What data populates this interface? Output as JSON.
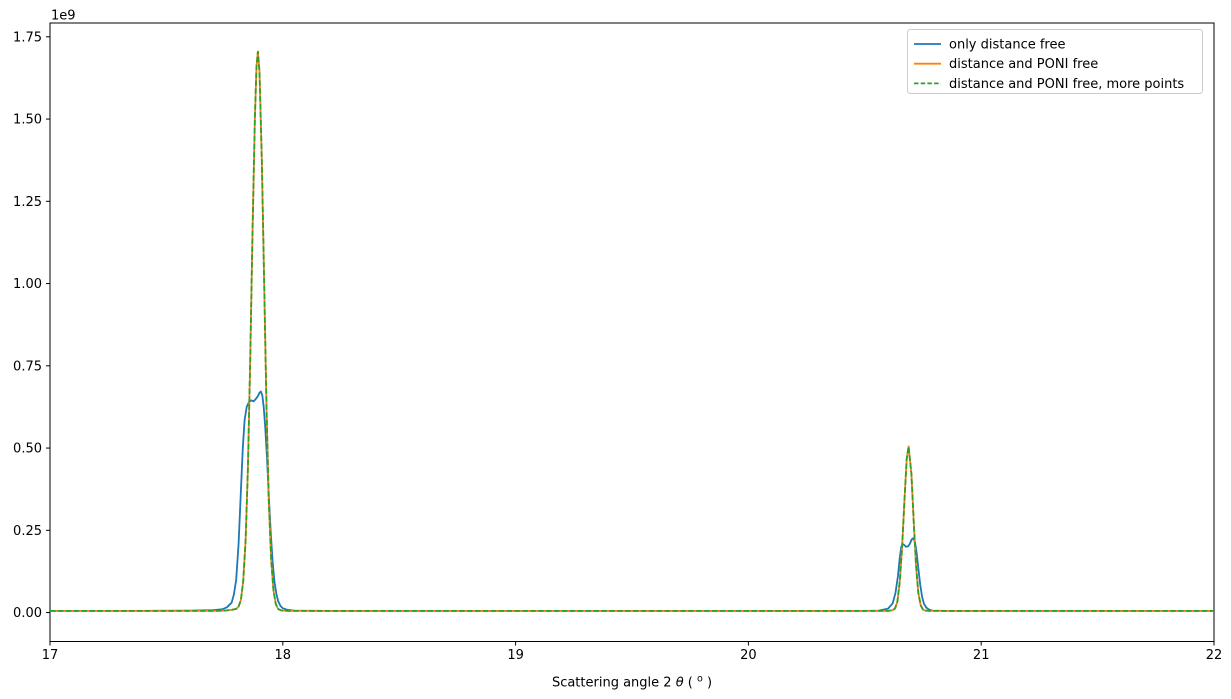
{
  "figure": {
    "background": "#ffffff"
  },
  "chart_data": {
    "type": "line",
    "title": "",
    "offset_text": "1e9",
    "xlabel_parts": [
      "Scattering angle 2",
      "θ",
      " (",
      "o",
      ")"
    ],
    "ylabel": "",
    "xlim": [
      17,
      22
    ],
    "ylim_1e9": [
      -0.088,
      1.792
    ],
    "grid": false,
    "x_ticks": {
      "values": [
        17,
        18,
        19,
        20,
        21,
        22
      ],
      "labels": [
        "17",
        "18",
        "19",
        "20",
        "21",
        "22"
      ]
    },
    "y_ticks": {
      "values": [
        0,
        0.25,
        0.5,
        0.75,
        1.0,
        1.25,
        1.5,
        1.75
      ],
      "labels": [
        "0.00",
        "0.25",
        "0.50",
        "0.75",
        "1.00",
        "1.25",
        "1.50",
        "1.75"
      ]
    },
    "y_unit": "1e9",
    "legend": {
      "position": "upper right",
      "border_color": "#cccccc",
      "background": "#ffffff"
    },
    "series": [
      {
        "name": "only distance free",
        "color": "#1f77b4",
        "style": "solid",
        "peaks_note": "broad split-top peaks at 2theta 17.87 (0.67e9) and 20.68 (0.23e9)",
        "points": [
          [
            17.0,
            0.005
          ],
          [
            17.3,
            0.005
          ],
          [
            17.6,
            0.006
          ],
          [
            17.7,
            0.007
          ],
          [
            17.74,
            0.01
          ],
          [
            17.76,
            0.016
          ],
          [
            17.78,
            0.03
          ],
          [
            17.79,
            0.055
          ],
          [
            17.8,
            0.1
          ],
          [
            17.81,
            0.21
          ],
          [
            17.82,
            0.37
          ],
          [
            17.828,
            0.5
          ],
          [
            17.836,
            0.585
          ],
          [
            17.845,
            0.625
          ],
          [
            17.855,
            0.64
          ],
          [
            17.865,
            0.645
          ],
          [
            17.875,
            0.642
          ],
          [
            17.885,
            0.65
          ],
          [
            17.893,
            0.658
          ],
          [
            17.9,
            0.668
          ],
          [
            17.906,
            0.672
          ],
          [
            17.912,
            0.66
          ],
          [
            17.918,
            0.625
          ],
          [
            17.925,
            0.56
          ],
          [
            17.932,
            0.47
          ],
          [
            17.94,
            0.355
          ],
          [
            17.948,
            0.245
          ],
          [
            17.956,
            0.155
          ],
          [
            17.964,
            0.095
          ],
          [
            17.972,
            0.058
          ],
          [
            17.98,
            0.035
          ],
          [
            17.99,
            0.02
          ],
          [
            18.0,
            0.013
          ],
          [
            18.02,
            0.008
          ],
          [
            18.05,
            0.006
          ],
          [
            18.2,
            0.005
          ],
          [
            18.5,
            0.005
          ],
          [
            19.0,
            0.005
          ],
          [
            19.5,
            0.005
          ],
          [
            20.0,
            0.005
          ],
          [
            20.3,
            0.005
          ],
          [
            20.5,
            0.005
          ],
          [
            20.56,
            0.006
          ],
          [
            20.6,
            0.012
          ],
          [
            20.62,
            0.028
          ],
          [
            20.632,
            0.06
          ],
          [
            20.642,
            0.11
          ],
          [
            20.65,
            0.165
          ],
          [
            20.657,
            0.2
          ],
          [
            20.663,
            0.208
          ],
          [
            20.67,
            0.205
          ],
          [
            20.678,
            0.2
          ],
          [
            20.686,
            0.201
          ],
          [
            20.694,
            0.21
          ],
          [
            20.701,
            0.222
          ],
          [
            20.708,
            0.226
          ],
          [
            20.715,
            0.215
          ],
          [
            20.722,
            0.185
          ],
          [
            20.73,
            0.135
          ],
          [
            20.738,
            0.085
          ],
          [
            20.746,
            0.048
          ],
          [
            20.754,
            0.027
          ],
          [
            20.764,
            0.015
          ],
          [
            20.776,
            0.009
          ],
          [
            20.79,
            0.006
          ],
          [
            20.85,
            0.005
          ],
          [
            21.0,
            0.005
          ],
          [
            21.3,
            0.005
          ],
          [
            21.6,
            0.005
          ],
          [
            22.0,
            0.005
          ]
        ]
      },
      {
        "name": "distance and PONI free",
        "color": "#ff7f0e",
        "style": "solid",
        "peaks_note": "sharp peaks at 2theta 17.893 (1.70e9) and 20.688 (0.51e9)",
        "points": [
          [
            17.0,
            0.005
          ],
          [
            17.3,
            0.005
          ],
          [
            17.6,
            0.005
          ],
          [
            17.7,
            0.005
          ],
          [
            17.75,
            0.006
          ],
          [
            17.78,
            0.008
          ],
          [
            17.8,
            0.011
          ],
          [
            17.81,
            0.018
          ],
          [
            17.82,
            0.038
          ],
          [
            17.83,
            0.095
          ],
          [
            17.84,
            0.218
          ],
          [
            17.85,
            0.438
          ],
          [
            17.86,
            0.765
          ],
          [
            17.87,
            1.154
          ],
          [
            17.88,
            1.505
          ],
          [
            17.887,
            1.66
          ],
          [
            17.893,
            1.705
          ],
          [
            17.9,
            1.644
          ],
          [
            17.91,
            1.378
          ],
          [
            17.92,
            0.997
          ],
          [
            17.93,
            0.623
          ],
          [
            17.94,
            0.337
          ],
          [
            17.95,
            0.159
          ],
          [
            17.96,
            0.066
          ],
          [
            17.97,
            0.026
          ],
          [
            17.98,
            0.011
          ],
          [
            17.99,
            0.007
          ],
          [
            18.0,
            0.006
          ],
          [
            18.02,
            0.005
          ],
          [
            18.2,
            0.005
          ],
          [
            18.5,
            0.005
          ],
          [
            19.0,
            0.005
          ],
          [
            19.5,
            0.005
          ],
          [
            20.0,
            0.005
          ],
          [
            20.3,
            0.005
          ],
          [
            20.55,
            0.005
          ],
          [
            20.6,
            0.005
          ],
          [
            20.62,
            0.007
          ],
          [
            20.63,
            0.013
          ],
          [
            20.64,
            0.033
          ],
          [
            20.65,
            0.092
          ],
          [
            20.66,
            0.193
          ],
          [
            20.67,
            0.338
          ],
          [
            20.68,
            0.467
          ],
          [
            20.688,
            0.505
          ],
          [
            20.7,
            0.422
          ],
          [
            20.71,
            0.278
          ],
          [
            20.72,
            0.144
          ],
          [
            20.73,
            0.06
          ],
          [
            20.74,
            0.022
          ],
          [
            20.75,
            0.009
          ],
          [
            20.76,
            0.006
          ],
          [
            20.78,
            0.005
          ],
          [
            20.85,
            0.005
          ],
          [
            21.0,
            0.005
          ],
          [
            21.3,
            0.005
          ],
          [
            21.6,
            0.005
          ],
          [
            22.0,
            0.005
          ]
        ]
      },
      {
        "name": "distance and PONI free, more points",
        "color": "#2ca02c",
        "style": "dashed",
        "peaks_note": "identical to 'distance and PONI free' curve, drawn dashed on top",
        "points": [
          [
            17.0,
            0.005
          ],
          [
            17.3,
            0.005
          ],
          [
            17.6,
            0.005
          ],
          [
            17.7,
            0.005
          ],
          [
            17.75,
            0.006
          ],
          [
            17.78,
            0.008
          ],
          [
            17.8,
            0.011
          ],
          [
            17.81,
            0.018
          ],
          [
            17.82,
            0.038
          ],
          [
            17.83,
            0.095
          ],
          [
            17.84,
            0.218
          ],
          [
            17.85,
            0.438
          ],
          [
            17.86,
            0.765
          ],
          [
            17.87,
            1.154
          ],
          [
            17.88,
            1.505
          ],
          [
            17.887,
            1.66
          ],
          [
            17.893,
            1.705
          ],
          [
            17.9,
            1.644
          ],
          [
            17.91,
            1.378
          ],
          [
            17.92,
            0.997
          ],
          [
            17.93,
            0.623
          ],
          [
            17.94,
            0.337
          ],
          [
            17.95,
            0.159
          ],
          [
            17.96,
            0.066
          ],
          [
            17.97,
            0.026
          ],
          [
            17.98,
            0.011
          ],
          [
            17.99,
            0.007
          ],
          [
            18.0,
            0.006
          ],
          [
            18.02,
            0.005
          ],
          [
            18.2,
            0.005
          ],
          [
            18.5,
            0.005
          ],
          [
            19.0,
            0.005
          ],
          [
            19.5,
            0.005
          ],
          [
            20.0,
            0.005
          ],
          [
            20.3,
            0.005
          ],
          [
            20.55,
            0.005
          ],
          [
            20.6,
            0.005
          ],
          [
            20.62,
            0.007
          ],
          [
            20.63,
            0.013
          ],
          [
            20.64,
            0.033
          ],
          [
            20.65,
            0.092
          ],
          [
            20.66,
            0.193
          ],
          [
            20.67,
            0.338
          ],
          [
            20.68,
            0.467
          ],
          [
            20.688,
            0.505
          ],
          [
            20.7,
            0.422
          ],
          [
            20.71,
            0.278
          ],
          [
            20.72,
            0.144
          ],
          [
            20.73,
            0.06
          ],
          [
            20.74,
            0.022
          ],
          [
            20.75,
            0.009
          ],
          [
            20.76,
            0.006
          ],
          [
            20.78,
            0.005
          ],
          [
            20.85,
            0.005
          ],
          [
            21.0,
            0.005
          ],
          [
            21.3,
            0.005
          ],
          [
            21.6,
            0.005
          ],
          [
            22.0,
            0.005
          ]
        ]
      }
    ]
  }
}
